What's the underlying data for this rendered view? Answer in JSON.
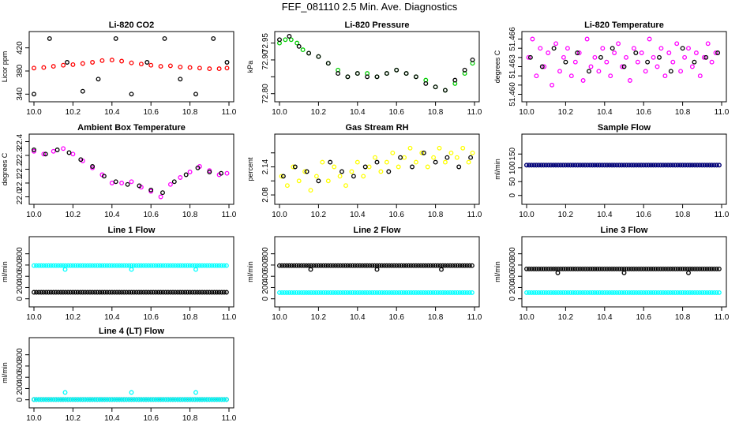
{
  "title": "FEF_081110  2.5 Min. Ave. Diagnostics",
  "chart_data": [
    {
      "type": "scatter",
      "title": "Li-820 CO2",
      "ylabel": "Licor ppm",
      "xlim": [
        10.0,
        11.0
      ],
      "ylim": [
        335,
        440
      ],
      "xticks": [
        10.0,
        10.2,
        10.4,
        10.6,
        10.8,
        11.0
      ],
      "yticks": [
        340,
        380,
        420
      ],
      "yticklabels": [
        "340",
        "380",
        "420"
      ],
      "series": [
        {
          "color": "#ff0000",
          "x": [
            10.0,
            10.05,
            10.1,
            10.15,
            10.2,
            10.25,
            10.3,
            10.35,
            10.4,
            10.45,
            10.5,
            10.55,
            10.6,
            10.65,
            10.7,
            10.75,
            10.8,
            10.85,
            10.9,
            10.95,
            10.99
          ],
          "y": [
            385,
            386,
            388,
            390,
            391,
            393,
            395,
            398,
            399,
            397,
            394,
            392,
            390,
            388,
            389,
            387,
            386,
            385,
            384,
            384,
            385
          ]
        },
        {
          "color": "#000000",
          "x": [
            10.0,
            10.08,
            10.17,
            10.25,
            10.33,
            10.42,
            10.5,
            10.58,
            10.67,
            10.75,
            10.83,
            10.92,
            10.99
          ],
          "y": [
            340,
            436,
            395,
            345,
            366,
            436,
            340,
            395,
            436,
            366,
            340,
            436,
            395
          ]
        }
      ]
    },
    {
      "type": "scatter",
      "title": "Li-820 Pressure",
      "ylabel": "kPa",
      "xlim": [
        10.0,
        11.0
      ],
      "ylim": [
        72.79,
        72.97
      ],
      "xticks": [
        10.0,
        10.2,
        10.4,
        10.6,
        10.8,
        11.0
      ],
      "yticks": [
        72.8,
        72.85,
        72.9,
        72.95
      ],
      "yticklabels": [
        "72.80",
        "",
        "72.90",
        "72.95"
      ],
      "series": [
        {
          "color": "#00cc00",
          "x": [
            10.0,
            10.03,
            10.06,
            10.09,
            10.12,
            10.15,
            10.2,
            10.25,
            10.3,
            10.35,
            10.4,
            10.45,
            10.5,
            10.55,
            10.6,
            10.65,
            10.7,
            10.75,
            10.8,
            10.85,
            10.9,
            10.95,
            10.99
          ],
          "y": [
            72.95,
            72.96,
            72.96,
            72.95,
            72.93,
            72.92,
            72.91,
            72.89,
            72.87,
            72.85,
            72.86,
            72.86,
            72.85,
            72.86,
            72.87,
            72.86,
            72.85,
            72.84,
            72.82,
            72.81,
            72.83,
            72.86,
            72.89
          ]
        },
        {
          "color": "#000000",
          "x": [
            10.0,
            10.05,
            10.1,
            10.15,
            10.2,
            10.25,
            10.3,
            10.35,
            10.4,
            10.45,
            10.5,
            10.55,
            10.6,
            10.65,
            10.7,
            10.75,
            10.8,
            10.85,
            10.9,
            10.95,
            10.99
          ],
          "y": [
            72.96,
            72.97,
            72.94,
            72.92,
            72.91,
            72.89,
            72.86,
            72.85,
            72.86,
            72.85,
            72.85,
            72.86,
            72.87,
            72.86,
            72.85,
            72.83,
            72.82,
            72.81,
            72.84,
            72.87,
            72.9
          ]
        }
      ]
    },
    {
      "type": "scatter",
      "title": "Li-820 Temperature",
      "ylabel": "degrees C",
      "xlim": [
        10.0,
        11.0
      ],
      "ylim": [
        51.4597,
        51.4663
      ],
      "xticks": [
        10.0,
        10.2,
        10.4,
        10.6,
        10.8,
        11.0
      ],
      "yticks": [
        51.46,
        51.461,
        51.462,
        51.463,
        51.464,
        51.465,
        51.466
      ],
      "yticklabels": [
        "51.460",
        "",
        "",
        "51.463",
        "",
        "",
        "51.466"
      ],
      "series": [
        {
          "color": "#ff00ff",
          "x": [
            10.01,
            10.03,
            10.05,
            10.07,
            10.09,
            10.11,
            10.13,
            10.15,
            10.17,
            10.19,
            10.21,
            10.23,
            10.25,
            10.27,
            10.29,
            10.31,
            10.33,
            10.35,
            10.37,
            10.39,
            10.41,
            10.43,
            10.45,
            10.47,
            10.49,
            10.51,
            10.53,
            10.55,
            10.57,
            10.59,
            10.61,
            10.63,
            10.65,
            10.67,
            10.69,
            10.71,
            10.73,
            10.75,
            10.77,
            10.79,
            10.81,
            10.83,
            10.85,
            10.87,
            10.89,
            10.91,
            10.93,
            10.95,
            10.97
          ],
          "y": [
            51.464,
            51.466,
            51.462,
            51.465,
            51.463,
            51.4645,
            51.461,
            51.4655,
            51.4625,
            51.464,
            51.465,
            51.462,
            51.4635,
            51.4645,
            51.4615,
            51.466,
            51.463,
            51.464,
            51.4625,
            51.465,
            51.4635,
            51.462,
            51.4645,
            51.4655,
            51.463,
            51.464,
            51.4615,
            51.465,
            51.4635,
            51.4645,
            51.4625,
            51.466,
            51.464,
            51.463,
            51.465,
            51.462,
            51.4645,
            51.4635,
            51.4655,
            51.4625,
            51.464,
            51.465,
            51.463,
            51.4645,
            51.462,
            51.464,
            51.4655,
            51.4635,
            51.4645
          ]
        },
        {
          "color": "#000000",
          "x": [
            10.02,
            10.08,
            10.14,
            10.2,
            10.26,
            10.32,
            10.38,
            10.44,
            10.5,
            10.56,
            10.62,
            10.68,
            10.74,
            10.8,
            10.86,
            10.92,
            10.98
          ],
          "y": [
            51.464,
            51.463,
            51.465,
            51.4635,
            51.4645,
            51.4625,
            51.464,
            51.465,
            51.463,
            51.4645,
            51.4635,
            51.464,
            51.4625,
            51.465,
            51.4635,
            51.464,
            51.4645
          ]
        }
      ]
    },
    {
      "type": "scatter",
      "title": "Ambient Box Temperature",
      "ylabel": "degrees C",
      "xlim": [
        10.0,
        11.0
      ],
      "ylim": [
        21.98,
        22.42
      ],
      "xticks": [
        10.0,
        10.2,
        10.4,
        10.6,
        10.8,
        11.0
      ],
      "yticks": [
        22.0,
        22.1,
        22.2,
        22.3,
        22.4
      ],
      "yticklabels": [
        "22.0",
        "22.1",
        "22.2",
        "22.3",
        "22.4"
      ],
      "series": [
        {
          "color": "#ff00ff",
          "x": [
            10.0,
            10.05,
            10.1,
            10.15,
            10.2,
            10.25,
            10.3,
            10.35,
            10.4,
            10.45,
            10.5,
            10.55,
            10.6,
            10.65,
            10.7,
            10.75,
            10.8,
            10.85,
            10.9,
            10.95,
            10.99
          ],
          "y": [
            22.33,
            22.31,
            22.33,
            22.35,
            22.31,
            22.26,
            22.21,
            22.16,
            22.1,
            22.1,
            22.11,
            22.07,
            22.04,
            22.0,
            22.09,
            22.14,
            22.18,
            22.22,
            22.19,
            22.16,
            22.17
          ]
        },
        {
          "color": "#000000",
          "x": [
            10.0,
            10.06,
            10.12,
            10.18,
            10.24,
            10.3,
            10.36,
            10.42,
            10.48,
            10.54,
            10.6,
            10.66,
            10.72,
            10.78,
            10.84,
            10.9,
            10.96
          ],
          "y": [
            22.34,
            22.31,
            22.34,
            22.32,
            22.27,
            22.22,
            22.15,
            22.11,
            22.09,
            22.08,
            22.05,
            22.03,
            22.11,
            22.16,
            22.21,
            22.18,
            22.17
          ]
        }
      ]
    },
    {
      "type": "scatter",
      "title": "Gas Stream RH",
      "ylabel": "percent",
      "xlim": [
        10.0,
        11.0
      ],
      "ylim": [
        2.07,
        2.2
      ],
      "xticks": [
        10.0,
        10.2,
        10.4,
        10.6,
        10.8,
        11.0
      ],
      "yticks": [
        2.08,
        2.11,
        2.14,
        2.17
      ],
      "yticklabels": [
        "2.08",
        "",
        "2.14",
        ""
      ],
      "series": [
        {
          "color": "#ffff00",
          "x": [
            10.01,
            10.04,
            10.07,
            10.1,
            10.13,
            10.16,
            10.19,
            10.22,
            10.25,
            10.28,
            10.31,
            10.34,
            10.37,
            10.4,
            10.43,
            10.46,
            10.49,
            10.52,
            10.55,
            10.58,
            10.61,
            10.64,
            10.67,
            10.7,
            10.73,
            10.76,
            10.79,
            10.82,
            10.85,
            10.88,
            10.91,
            10.94,
            10.97,
            10.99
          ],
          "y": [
            2.12,
            2.1,
            2.14,
            2.11,
            2.13,
            2.09,
            2.12,
            2.15,
            2.11,
            2.14,
            2.12,
            2.1,
            2.13,
            2.15,
            2.12,
            2.14,
            2.16,
            2.13,
            2.15,
            2.17,
            2.14,
            2.16,
            2.18,
            2.15,
            2.17,
            2.14,
            2.16,
            2.18,
            2.15,
            2.17,
            2.16,
            2.18,
            2.15,
            2.17
          ]
        },
        {
          "color": "#000000",
          "x": [
            10.02,
            10.08,
            10.14,
            10.2,
            10.26,
            10.32,
            10.38,
            10.44,
            10.5,
            10.56,
            10.62,
            10.68,
            10.74,
            10.8,
            10.86,
            10.92,
            10.98
          ],
          "y": [
            2.12,
            2.14,
            2.13,
            2.11,
            2.15,
            2.13,
            2.12,
            2.14,
            2.15,
            2.13,
            2.16,
            2.14,
            2.17,
            2.15,
            2.16,
            2.14,
            2.16
          ]
        }
      ]
    },
    {
      "type": "scatter",
      "title": "Sample Flow",
      "ylabel": "ml/min",
      "xlim": [
        10.0,
        11.0
      ],
      "ylim": [
        -15,
        205
      ],
      "xticks": [
        10.0,
        10.2,
        10.4,
        10.6,
        10.8,
        11.0
      ],
      "yticks": [
        0,
        50,
        100,
        150
      ],
      "yticklabels": [
        "0",
        "50",
        "100",
        "150"
      ],
      "series": [
        {
          "color": "#000000",
          "constant": 110
        },
        {
          "color": "#000080",
          "constant": 110
        }
      ]
    },
    {
      "type": "scatter",
      "title": "Line 1 Flow",
      "ylabel": "ml/min",
      "xlim": [
        10.0,
        11.0
      ],
      "ylim": [
        -60,
        1020
      ],
      "xticks": [
        10.0,
        10.2,
        10.4,
        10.6,
        10.8,
        11.0
      ],
      "yticks": [
        0,
        200,
        400,
        600,
        800
      ],
      "yticklabels": [
        "0",
        "200",
        "400",
        "600",
        "800"
      ],
      "series": [
        {
          "color": "#00ffff",
          "constant": 590,
          "outliers_x": [
            10.16,
            10.5,
            10.83
          ],
          "outliers_y": [
            520,
            520,
            520
          ]
        },
        {
          "color": "#000000",
          "constant": 115
        }
      ]
    },
    {
      "type": "scatter",
      "title": "Line 2 Flow",
      "ylabel": "ml/min",
      "xlim": [
        10.0,
        11.0
      ],
      "ylim": [
        -60,
        1020
      ],
      "xticks": [
        10.0,
        10.2,
        10.4,
        10.6,
        10.8,
        11.0
      ],
      "yticks": [
        0,
        200,
        400,
        600,
        800
      ],
      "yticklabels": [
        "0",
        "200",
        "400",
        "600",
        "800"
      ],
      "series": [
        {
          "color": "#000000",
          "constant": 590,
          "outliers_x": [
            10.16,
            10.5,
            10.83
          ],
          "outliers_y": [
            520,
            520,
            520
          ]
        },
        {
          "color": "#00ffff",
          "constant": 110
        }
      ]
    },
    {
      "type": "scatter",
      "title": "Line 3 Flow",
      "ylabel": "ml/min",
      "xlim": [
        10.0,
        11.0
      ],
      "ylim": [
        -60,
        1020
      ],
      "xticks": [
        10.0,
        10.2,
        10.4,
        10.6,
        10.8,
        11.0
      ],
      "yticks": [
        0,
        200,
        400,
        600,
        800
      ],
      "yticklabels": [
        "0",
        "200",
        "400",
        "600",
        "800"
      ],
      "series": [
        {
          "color": "#000000",
          "constant": 530,
          "outliers_x": [
            10.16,
            10.5,
            10.83
          ],
          "outliers_y": [
            460,
            460,
            460
          ]
        },
        {
          "color": "#00ffff",
          "constant": 110
        }
      ]
    },
    {
      "type": "scatter",
      "title": "Line 4 (LT) Flow",
      "ylabel": "ml/min",
      "xlim": [
        10.0,
        11.0
      ],
      "ylim": [
        -60,
        1020
      ],
      "xticks": [
        10.0,
        10.2,
        10.4,
        10.6,
        10.8,
        11.0
      ],
      "yticks": [
        0,
        200,
        400,
        600,
        800
      ],
      "yticklabels": [
        "0",
        "200",
        "400",
        "600",
        "800"
      ],
      "series": [
        {
          "color": "#000000",
          "constant": 5
        },
        {
          "color": "#00ffff",
          "constant": 5,
          "outliers_x": [
            10.16,
            10.5,
            10.83
          ],
          "outliers_y": [
            130,
            130,
            130
          ]
        }
      ]
    }
  ]
}
